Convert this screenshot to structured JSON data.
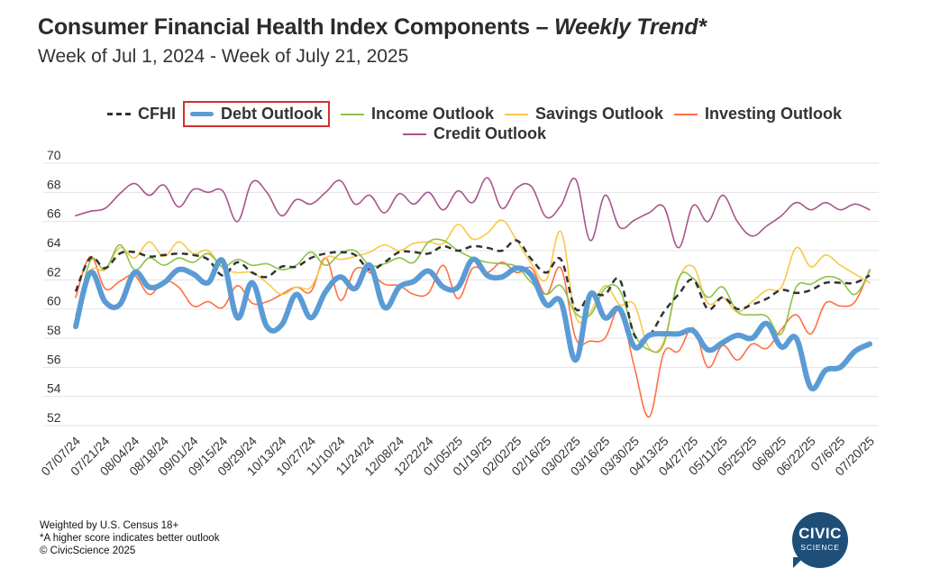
{
  "header": {
    "title_main": "Consumer Financial Health Index Components – ",
    "title_italic": "Weekly Trend*",
    "subtitle": "Week of Jul 1, 2024 - Week of July 21, 2025"
  },
  "footnotes": {
    "line1": "Weighted by U.S. Census 18+",
    "line2": "*A higher score indicates better outlook",
    "line3": "© CivicScience 2025"
  },
  "logo": {
    "line1": "CIVIC",
    "line2": "SCIENCE",
    "color": "#1f4e79"
  },
  "chart_data": {
    "type": "line",
    "title": "Consumer Financial Health Index Components – Weekly Trend*",
    "subtitle": "Week of Jul 1, 2024 - Week of July 21, 2025",
    "xlabel": "",
    "ylabel": "",
    "ylim": [
      52,
      70
    ],
    "yticks": [
      52,
      54,
      56,
      58,
      60,
      62,
      64,
      66,
      68,
      70
    ],
    "grid": "horizontal",
    "legend_position": "top",
    "x": [
      "07/07/24",
      "07/14/24",
      "07/21/24",
      "07/28/24",
      "08/04/24",
      "08/11/24",
      "08/18/24",
      "08/25/24",
      "09/01/24",
      "09/08/24",
      "09/15/24",
      "09/22/24",
      "09/29/24",
      "10/06/24",
      "10/13/24",
      "10/20/24",
      "10/27/24",
      "11/03/24",
      "11/10/24",
      "11/17/24",
      "11/24/24",
      "12/01/24",
      "12/08/24",
      "12/15/24",
      "12/22/24",
      "12/29/24",
      "01/05/25",
      "01/12/25",
      "01/19/25",
      "01/26/25",
      "02/02/25",
      "02/09/25",
      "02/16/25",
      "02/23/25",
      "03/02/25",
      "03/09/25",
      "03/16/25",
      "03/23/25",
      "03/30/25",
      "04/06/25",
      "04/13/25",
      "04/20/25",
      "04/27/25",
      "05/04/25",
      "05/11/25",
      "05/18/25",
      "05/25/25",
      "06/01/25",
      "06/8/25",
      "06/15/25",
      "06/22/25",
      "06/29/25",
      "07/6/25",
      "07/13/25",
      "07/20/25"
    ],
    "xticks_shown": [
      "07/07/24",
      "07/21/24",
      "08/04/24",
      "08/18/24",
      "09/01/24",
      "09/15/24",
      "09/29/24",
      "10/13/24",
      "10/27/24",
      "11/10/24",
      "11/24/24",
      "12/08/24",
      "12/22/24",
      "01/05/25",
      "01/19/25",
      "02/02/25",
      "02/16/25",
      "03/02/25",
      "03/16/25",
      "03/30/25",
      "04/13/25",
      "04/27/25",
      "05/11/25",
      "05/25/25",
      "06/8/25",
      "06/22/25",
      "07/6/25",
      "07/20/25"
    ],
    "series": [
      {
        "name": "CFHI",
        "color": "#333333",
        "style": "dashed",
        "highlighted": false,
        "values": [
          61.2,
          63.5,
          62.8,
          63.8,
          63.9,
          63.6,
          63.7,
          63.8,
          63.7,
          63.4,
          62.3,
          63.2,
          62.5,
          62.2,
          62.9,
          62.9,
          63.5,
          63.8,
          63.9,
          63.7,
          62.7,
          63.2,
          63.9,
          63.9,
          63.8,
          64.3,
          64.0,
          64.3,
          64.2,
          64.0,
          64.7,
          63.4,
          62.5,
          63.4,
          60.0,
          61.0,
          61.0,
          62.0,
          58.2,
          58.2,
          59.8,
          61.0,
          62.0,
          60.0,
          60.8,
          60.0,
          60.3,
          60.7,
          61.3,
          61.1,
          61.3,
          61.8,
          61.8,
          61.8,
          62.3
        ]
      },
      {
        "name": "Debt Outlook",
        "color": "#5b9bd5",
        "style": "thick",
        "highlighted": true,
        "values": [
          58.8,
          62.5,
          60.5,
          60.3,
          62.5,
          61.5,
          61.8,
          62.7,
          62.4,
          61.8,
          63.3,
          59.4,
          61.8,
          58.8,
          58.9,
          61.0,
          59.4,
          61.2,
          62.2,
          61.4,
          63.0,
          60.1,
          61.5,
          61.9,
          62.6,
          61.5,
          61.5,
          63.4,
          62.3,
          62.2,
          62.8,
          62.3,
          60.3,
          60.5,
          56.5,
          61.0,
          59.4,
          60.0,
          57.4,
          58.2,
          58.3,
          58.3,
          58.5,
          57.2,
          57.7,
          58.2,
          58.0,
          59.0,
          57.4,
          58.0,
          54.6,
          55.8,
          56.0,
          57.1,
          57.6
        ]
      },
      {
        "name": "Income Outlook",
        "color": "#8bc34a",
        "style": "solid",
        "highlighted": false,
        "values": [
          59.0,
          63.3,
          62.7,
          64.4,
          62.7,
          63.5,
          63.0,
          63.5,
          63.2,
          63.8,
          62.9,
          63.4,
          63.0,
          63.1,
          62.7,
          63.0,
          63.9,
          63.0,
          63.8,
          64.0,
          63.0,
          63.1,
          63.5,
          63.2,
          64.6,
          64.7,
          64.0,
          63.5,
          63.2,
          63.1,
          62.9,
          61.8,
          61.0,
          61.6,
          59.7,
          59.6,
          61.4,
          61.3,
          58.3,
          57.2,
          57.6,
          62.1,
          62.1,
          60.8,
          61.5,
          59.8,
          59.6,
          59.5,
          58.3,
          61.5,
          61.7,
          62.2,
          62.0,
          61.0,
          62.6
        ]
      },
      {
        "name": "Savings Outlook",
        "color": "#f7c948",
        "style": "solid",
        "highlighted": false,
        "values": [
          59.6,
          62.6,
          62.7,
          64.2,
          63.5,
          64.6,
          63.6,
          64.6,
          63.8,
          64.0,
          62.8,
          62.5,
          62.5,
          61.8,
          61.0,
          61.5,
          61.5,
          63.5,
          63.4,
          63.6,
          63.9,
          64.4,
          64.0,
          64.5,
          64.6,
          64.5,
          65.8,
          64.8,
          65.2,
          66.1,
          64.7,
          63.1,
          62.0,
          65.3,
          59.5,
          59.8,
          61.6,
          60.3,
          60.3,
          57.3,
          57.8,
          62.0,
          62.9,
          60.4,
          60.8,
          59.8,
          60.5,
          61.3,
          61.5,
          64.2,
          62.9,
          63.7,
          63.0,
          62.4,
          61.8
        ]
      },
      {
        "name": "Investing Outlook",
        "color": "#ff7043",
        "style": "solid",
        "highlighted": false,
        "values": [
          60.8,
          63.6,
          61.4,
          61.9,
          62.3,
          61.0,
          61.9,
          61.5,
          60.2,
          60.5,
          60.1,
          61.6,
          60.4,
          60.5,
          61.0,
          61.5,
          61.2,
          63.5,
          60.6,
          62.7,
          62.5,
          61.7,
          61.6,
          61.0,
          61.1,
          63.0,
          60.7,
          62.8,
          62.5,
          63.2,
          62.5,
          62.8,
          61.0,
          62.8,
          58.0,
          57.8,
          58.0,
          59.9,
          56.0,
          52.6,
          57.0,
          57.1,
          58.7,
          56.0,
          57.5,
          56.5,
          57.6,
          57.3,
          58.6,
          59.6,
          58.3,
          60.4,
          60.2,
          60.5,
          62.7
        ]
      },
      {
        "name": "Credit Outlook",
        "color": "#a8558b",
        "style": "solid",
        "highlighted": false,
        "values": [
          66.4,
          66.7,
          66.9,
          67.9,
          68.6,
          67.8,
          68.5,
          67.0,
          68.2,
          68.0,
          68.1,
          66.0,
          68.7,
          68.0,
          66.4,
          67.5,
          67.2,
          68.0,
          68.8,
          67.2,
          67.8,
          66.6,
          67.9,
          67.2,
          68.0,
          66.8,
          68.1,
          67.3,
          69.0,
          66.9,
          68.3,
          68.4,
          66.3,
          67.1,
          68.9,
          64.7,
          67.8,
          65.6,
          66.1,
          66.6,
          67.0,
          64.2,
          67.1,
          66.0,
          67.8,
          66.0,
          65.0,
          65.7,
          66.4,
          67.3,
          66.8,
          67.3,
          66.8,
          67.2,
          66.8
        ]
      }
    ]
  }
}
